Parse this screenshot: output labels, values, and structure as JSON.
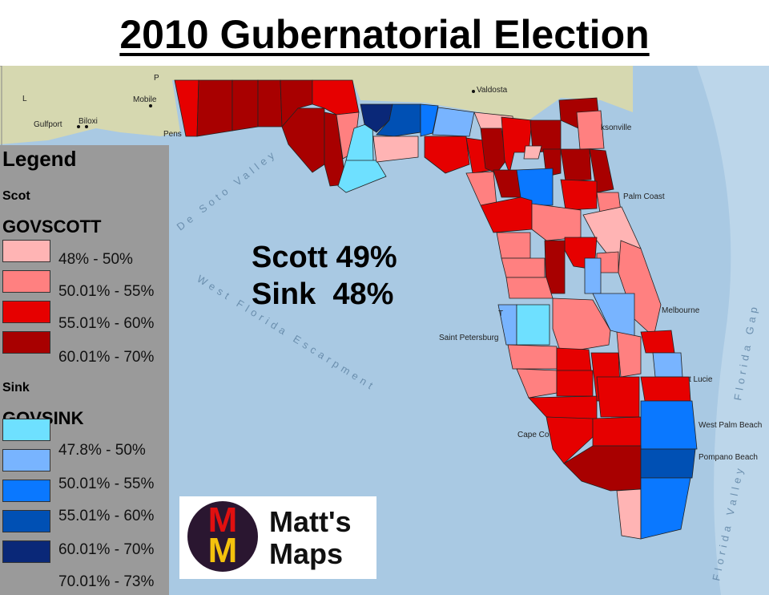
{
  "title": "2010 Gubernatorial Election",
  "result": {
    "line1": "Scott 49%",
    "line2": "Sink  48%"
  },
  "legend": {
    "heading": "Legend",
    "scott_group": "Scot",
    "scott_field": "GOVSCOTT",
    "scott_classes": [
      {
        "label": "48% - 50%",
        "color": "#ffb4b4"
      },
      {
        "label": "50.01% - 55%",
        "color": "#ff8080"
      },
      {
        "label": "55.01% - 60%",
        "color": "#e60000"
      },
      {
        "label": "60.01% - 70%",
        "color": "#a80000"
      }
    ],
    "sink_group": "Sink",
    "sink_field": "GOVSINK",
    "sink_classes": [
      {
        "label": "47.8% - 50%",
        "color": "#6ee0ff"
      },
      {
        "label": "50.01% - 55%",
        "color": "#78b4ff"
      },
      {
        "label": "55.01% - 60%",
        "color": "#0a78ff"
      },
      {
        "label": "60.01% - 70%",
        "color": "#0050b4"
      },
      {
        "label": "70.01% - 73%",
        "color": "#0a2878"
      }
    ]
  },
  "logo": {
    "letters": "MM",
    "line1": "Matt's",
    "line2": "Maps"
  },
  "places": {
    "p": "P",
    "l": "L",
    "mobile": "Mobile",
    "biloxi": "Biloxi",
    "gulfport": "Gulfport",
    "pensacola": "Pens",
    "valdosta": "Valdosta",
    "jacksonville": "ksonville",
    "palm_coast": "Palm Coast",
    "melbourne": "Melbourne",
    "st_petersburg": "Saint Petersburg",
    "tampa": "T",
    "cape_coral": "Cape Co",
    "st_lucie": "t Lucie",
    "west_palm_beach": "West Palm Beach",
    "pompano_beach": "Pompano Beach"
  },
  "features": {
    "de_soto_valley": "De Soto Valley",
    "escarpment": "West Florida Escarpment",
    "florida_gap": "Florida Gap",
    "florida_valley": "Florida Valley"
  }
}
